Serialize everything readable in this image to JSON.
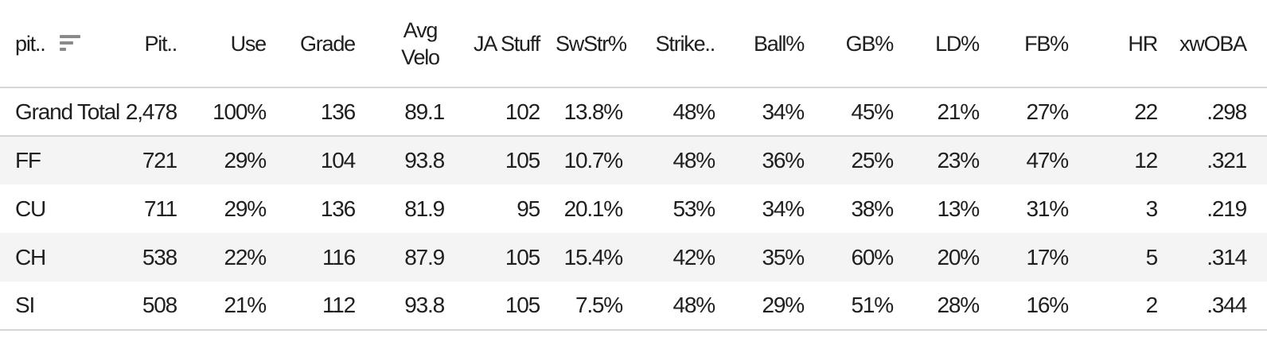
{
  "table": {
    "columns": [
      {
        "key": "pitch_type",
        "label": "pit.."
      },
      {
        "key": "pitches",
        "label": "Pit.."
      },
      {
        "key": "use",
        "label": "Use"
      },
      {
        "key": "grade",
        "label": "Grade"
      },
      {
        "key": "avg_velo",
        "label": "Avg Velo"
      },
      {
        "key": "ja_stuff",
        "label": "JA Stuff"
      },
      {
        "key": "swstr",
        "label": "SwStr%"
      },
      {
        "key": "strike",
        "label": "Strike.."
      },
      {
        "key": "ball",
        "label": "Ball%"
      },
      {
        "key": "gb",
        "label": "GB%"
      },
      {
        "key": "ld",
        "label": "LD%"
      },
      {
        "key": "fb",
        "label": "FB%"
      },
      {
        "key": "hr",
        "label": "HR"
      },
      {
        "key": "xwoba",
        "label": "xwOBA"
      }
    ],
    "sort_icon": "sort-descending-icon",
    "rows": [
      [
        "Grand Total",
        "2,478",
        "100%",
        "136",
        "89.1",
        "102",
        "13.8%",
        "48%",
        "34%",
        "45%",
        "21%",
        "27%",
        "22",
        ".298"
      ],
      [
        "FF",
        "721",
        "29%",
        "104",
        "93.8",
        "105",
        "10.7%",
        "48%",
        "36%",
        "25%",
        "23%",
        "47%",
        "12",
        ".321"
      ],
      [
        "CU",
        "711",
        "29%",
        "136",
        "81.9",
        "95",
        "20.1%",
        "53%",
        "34%",
        "38%",
        "13%",
        "31%",
        "3",
        ".219"
      ],
      [
        "CH",
        "538",
        "22%",
        "116",
        "87.9",
        "105",
        "15.4%",
        "42%",
        "35%",
        "60%",
        "20%",
        "17%",
        "5",
        ".314"
      ],
      [
        "SI",
        "508",
        "21%",
        "112",
        "93.8",
        "105",
        "7.5%",
        "48%",
        "29%",
        "51%",
        "28%",
        "16%",
        "2",
        ".344"
      ]
    ]
  },
  "colors": {
    "row_alt_background": "#f4f4f4",
    "divider": "#d6d6d6",
    "sort_icon": "#8a8a8a",
    "text": "#1f1f1f"
  }
}
